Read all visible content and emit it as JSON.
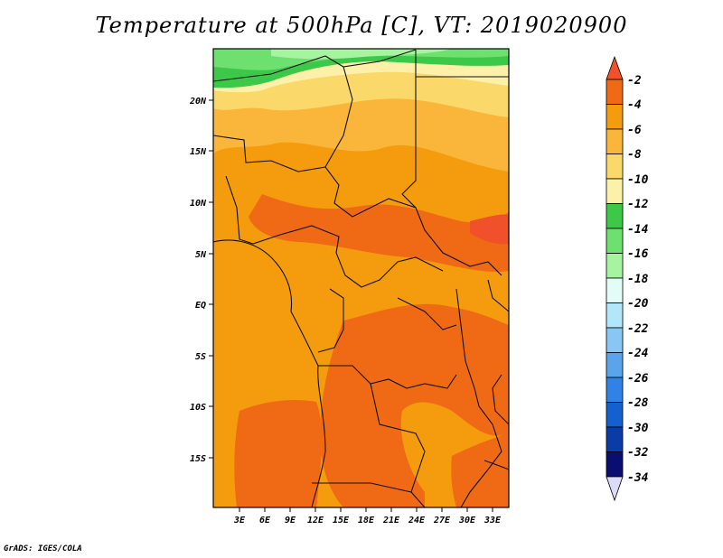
{
  "title": "Temperature at 500hPa [C], VT: 2019020900",
  "footer": "GrADS: IGES/COLA",
  "map": {
    "lon_range": [
      0,
      35
    ],
    "lat_range": [
      -20,
      25
    ],
    "lon_ticks": [
      "3E",
      "6E",
      "9E",
      "12E",
      "15E",
      "18E",
      "21E",
      "24E",
      "27E",
      "30E",
      "33E"
    ],
    "lat_ticks": [
      "20N",
      "15N",
      "10N",
      "5N",
      "EQ",
      "5S",
      "10S",
      "15S"
    ]
  },
  "colorbar": {
    "levels": [
      "-2",
      "-4",
      "-6",
      "-8",
      "-10",
      "-12",
      "-14",
      "-16",
      "-18",
      "-20",
      "-22",
      "-24",
      "-26",
      "-28",
      "-30",
      "-32",
      "-34"
    ],
    "colors": [
      "#f0502a",
      "#f06a16",
      "#f59c0e",
      "#f9b63a",
      "#fbd86a",
      "#fdf0a8",
      "#3cc848",
      "#6ee070",
      "#a6f4a0",
      "#e4fcf8",
      "#b2e6fa",
      "#88c6f4",
      "#5aa4ec",
      "#3082e6",
      "#1460d0",
      "#0a3ca8",
      "#0a0e70",
      "#dcdcf8"
    ]
  }
}
